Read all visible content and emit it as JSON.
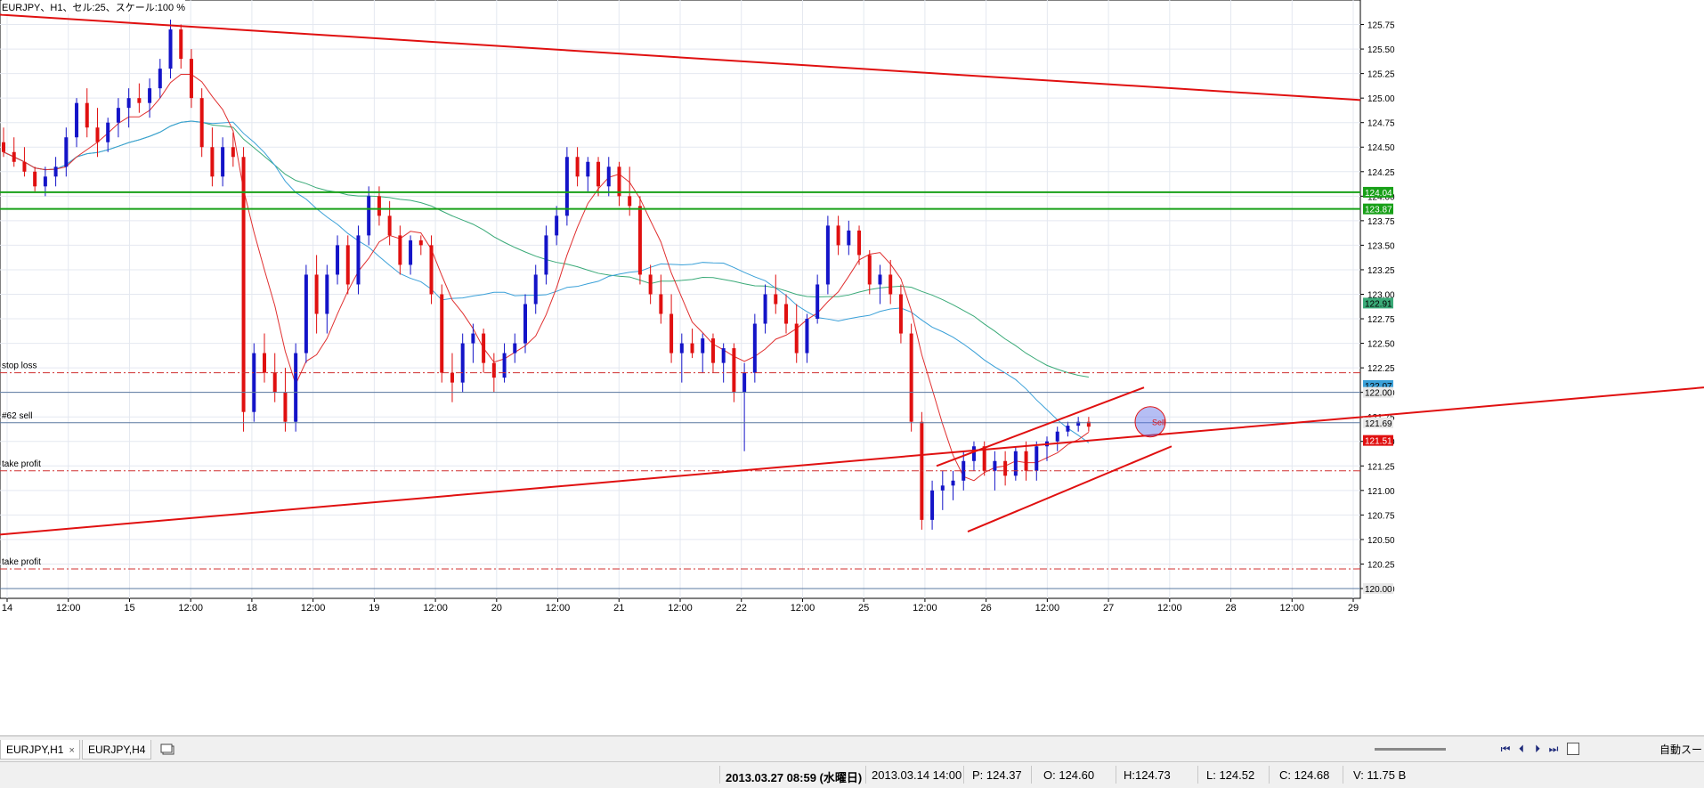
{
  "window": {
    "title": "EURJPY、H1、セル:25、スケール:100 %"
  },
  "colors": {
    "bull": "#1414c8",
    "bear": "#e01010",
    "trendline": "#e01010",
    "resistance": "#18a018",
    "ma_fast": "#e03030",
    "ma_mid": "#3aa0d8",
    "ma_slow": "#3aaa78",
    "grid": "#e4e8f0",
    "level_line": "#5a78a0",
    "stop_line": "#d03030",
    "axis_text": "#000000"
  },
  "chart_data": {
    "type": "candlestick",
    "symbol": "EURJPY",
    "timeframe": "H1",
    "ylim": [
      119.9,
      126.0
    ],
    "y_ticks": [
      "125.75",
      "125.50",
      "125.25",
      "125.00",
      "124.75",
      "124.50",
      "124.25",
      "124.00",
      "123.75",
      "123.50",
      "123.25",
      "123.00",
      "122.75",
      "122.50",
      "122.25",
      "122.00",
      "121.75",
      "121.50",
      "121.25",
      "121.00",
      "120.75",
      "120.50",
      "120.25",
      "120.00"
    ],
    "x_ticks": [
      "14",
      "12:00",
      "15",
      "12:00",
      "18",
      "12:00",
      "19",
      "12:00",
      "20",
      "12:00",
      "21",
      "12:00",
      "22",
      "12:00",
      "25",
      "12:00",
      "26",
      "12:00",
      "27",
      "12:00",
      "28",
      "12:00",
      "29"
    ],
    "candles": [
      [
        124.55,
        124.7,
        124.4,
        124.45
      ],
      [
        124.45,
        124.6,
        124.3,
        124.35
      ],
      [
        124.35,
        124.5,
        124.2,
        124.25
      ],
      [
        124.25,
        124.3,
        124.05,
        124.1
      ],
      [
        124.1,
        124.3,
        124.0,
        124.2
      ],
      [
        124.2,
        124.4,
        124.1,
        124.3
      ],
      [
        124.3,
        124.7,
        124.2,
        124.6
      ],
      [
        124.6,
        125.0,
        124.5,
        124.95
      ],
      [
        124.95,
        125.1,
        124.6,
        124.7
      ],
      [
        124.7,
        124.9,
        124.4,
        124.55
      ],
      [
        124.55,
        124.8,
        124.45,
        124.75
      ],
      [
        124.75,
        125.0,
        124.6,
        124.9
      ],
      [
        124.9,
        125.1,
        124.7,
        125.0
      ],
      [
        125.0,
        125.15,
        124.85,
        124.95
      ],
      [
        124.95,
        125.2,
        124.8,
        125.1
      ],
      [
        125.1,
        125.4,
        125.0,
        125.3
      ],
      [
        125.3,
        125.8,
        125.2,
        125.7
      ],
      [
        125.7,
        125.75,
        125.3,
        125.4
      ],
      [
        125.4,
        125.5,
        124.9,
        125.0
      ],
      [
        125.0,
        125.1,
        124.4,
        124.5
      ],
      [
        124.5,
        124.7,
        124.1,
        124.2
      ],
      [
        124.2,
        124.6,
        124.1,
        124.5
      ],
      [
        124.5,
        124.65,
        124.3,
        124.4
      ],
      [
        124.4,
        124.5,
        121.6,
        121.8
      ],
      [
        121.8,
        122.5,
        121.7,
        122.4
      ],
      [
        122.4,
        122.6,
        122.1,
        122.2
      ],
      [
        122.2,
        122.4,
        121.9,
        122.0
      ],
      [
        122.0,
        122.25,
        121.6,
        121.7
      ],
      [
        121.7,
        122.5,
        121.6,
        122.4
      ],
      [
        122.4,
        123.3,
        122.3,
        123.2
      ],
      [
        123.2,
        123.4,
        122.6,
        122.8
      ],
      [
        122.8,
        123.3,
        122.6,
        123.2
      ],
      [
        123.2,
        123.6,
        123.1,
        123.5
      ],
      [
        123.5,
        123.6,
        123.0,
        123.1
      ],
      [
        123.1,
        123.7,
        123.0,
        123.6
      ],
      [
        123.6,
        124.1,
        123.5,
        124.0
      ],
      [
        124.0,
        124.1,
        123.7,
        123.8
      ],
      [
        123.8,
        123.95,
        123.5,
        123.6
      ],
      [
        123.6,
        123.7,
        123.2,
        123.3
      ],
      [
        123.3,
        123.6,
        123.2,
        123.55
      ],
      [
        123.55,
        123.6,
        123.4,
        123.5
      ],
      [
        123.5,
        123.6,
        122.9,
        123.0
      ],
      [
        123.0,
        123.1,
        122.1,
        122.2
      ],
      [
        122.2,
        122.4,
        121.9,
        122.1
      ],
      [
        122.1,
        122.6,
        122.0,
        122.5
      ],
      [
        122.5,
        122.7,
        122.3,
        122.6
      ],
      [
        122.6,
        122.65,
        122.2,
        122.3
      ],
      [
        122.3,
        122.4,
        122.0,
        122.15
      ],
      [
        122.15,
        122.5,
        122.1,
        122.4
      ],
      [
        122.4,
        122.6,
        122.3,
        122.5
      ],
      [
        122.5,
        123.0,
        122.4,
        122.9
      ],
      [
        122.9,
        123.3,
        122.8,
        123.2
      ],
      [
        123.2,
        123.7,
        123.1,
        123.6
      ],
      [
        123.6,
        123.9,
        123.5,
        123.8
      ],
      [
        123.8,
        124.5,
        123.7,
        124.4
      ],
      [
        124.4,
        124.5,
        124.1,
        124.2
      ],
      [
        124.2,
        124.4,
        124.05,
        124.35
      ],
      [
        124.35,
        124.4,
        124.0,
        124.1
      ],
      [
        124.1,
        124.4,
        124.0,
        124.3
      ],
      [
        124.3,
        124.35,
        123.9,
        124.0
      ],
      [
        124.0,
        124.3,
        123.8,
        123.9
      ],
      [
        123.9,
        124.0,
        123.1,
        123.2
      ],
      [
        123.2,
        123.3,
        122.9,
        123.0
      ],
      [
        123.0,
        123.2,
        122.7,
        122.8
      ],
      [
        122.8,
        123.0,
        122.3,
        122.4
      ],
      [
        122.4,
        122.6,
        122.1,
        122.5
      ],
      [
        122.5,
        122.65,
        122.35,
        122.4
      ],
      [
        122.4,
        122.6,
        122.2,
        122.55
      ],
      [
        122.55,
        122.6,
        122.2,
        122.3
      ],
      [
        122.3,
        122.5,
        122.1,
        122.45
      ],
      [
        122.45,
        122.5,
        121.9,
        122.0
      ],
      [
        122.0,
        122.3,
        121.4,
        122.2
      ],
      [
        122.2,
        122.8,
        122.1,
        122.7
      ],
      [
        122.7,
        123.1,
        122.6,
        123.0
      ],
      [
        123.0,
        123.2,
        122.8,
        122.9
      ],
      [
        122.9,
        123.0,
        122.6,
        122.7
      ],
      [
        122.7,
        122.9,
        122.3,
        122.4
      ],
      [
        122.4,
        122.8,
        122.3,
        122.75
      ],
      [
        122.75,
        123.2,
        122.7,
        123.1
      ],
      [
        123.1,
        123.8,
        123.0,
        123.7
      ],
      [
        123.7,
        123.8,
        123.4,
        123.5
      ],
      [
        123.5,
        123.75,
        123.4,
        123.65
      ],
      [
        123.65,
        123.7,
        123.3,
        123.4
      ],
      [
        123.4,
        123.45,
        123.0,
        123.1
      ],
      [
        123.1,
        123.3,
        122.9,
        123.2
      ],
      [
        123.2,
        123.35,
        122.9,
        123.0
      ],
      [
        123.0,
        123.1,
        122.5,
        122.6
      ],
      [
        122.6,
        122.7,
        121.6,
        121.7
      ],
      [
        121.7,
        121.8,
        120.6,
        120.7
      ],
      [
        120.7,
        121.1,
        120.6,
        121.0
      ],
      [
        121.0,
        121.2,
        120.8,
        121.05
      ],
      [
        121.05,
        121.2,
        120.9,
        121.1
      ],
      [
        121.1,
        121.4,
        121.0,
        121.3
      ],
      [
        121.3,
        121.5,
        121.2,
        121.45
      ],
      [
        121.45,
        121.5,
        121.15,
        121.2
      ],
      [
        121.2,
        121.4,
        121.0,
        121.3
      ],
      [
        121.3,
        121.4,
        121.05,
        121.15
      ],
      [
        121.15,
        121.45,
        121.1,
        121.4
      ],
      [
        121.4,
        121.5,
        121.1,
        121.2
      ],
      [
        121.2,
        121.5,
        121.1,
        121.45
      ],
      [
        121.45,
        121.55,
        121.3,
        121.5
      ],
      [
        121.5,
        121.65,
        121.4,
        121.6
      ],
      [
        121.6,
        121.7,
        121.55,
        121.66
      ],
      [
        121.66,
        121.75,
        121.6,
        121.7
      ],
      [
        121.7,
        121.75,
        121.6,
        121.65
      ]
    ],
    "horizontal_lines": [
      {
        "price": 124.04,
        "kind": "resistance"
      },
      {
        "price": 123.87,
        "kind": "resistance"
      },
      {
        "price": 122.0,
        "kind": "level"
      },
      {
        "price": 121.69,
        "kind": "level"
      },
      {
        "price": 120.0,
        "kind": "level"
      }
    ],
    "order_lines": [
      {
        "label": "stop loss",
        "price": 122.2
      },
      {
        "label": "#62 sell",
        "price": 121.69
      },
      {
        "label": "take profit",
        "price": 121.2
      },
      {
        "label": "take profit",
        "price": 120.2
      }
    ],
    "price_labels": [
      {
        "text": "124.04",
        "price": 124.04,
        "color": "#18a018",
        "fg": "#ffffff"
      },
      {
        "text": "123.87",
        "price": 123.87,
        "color": "#18a018",
        "fg": "#ffffff"
      },
      {
        "text": "122.91",
        "price": 122.91,
        "color": "#3aaa78",
        "fg": "#000000"
      },
      {
        "text": "122.07",
        "price": 122.07,
        "color": "#3aa0d8",
        "fg": "#000000"
      },
      {
        "text": "122.00",
        "price": 122.0,
        "color": "#e8e8e8",
        "fg": "#000000"
      },
      {
        "text": "121.69",
        "price": 121.69,
        "color": "#e8e8e8",
        "fg": "#000000"
      },
      {
        "text": "121.51",
        "price": 121.51,
        "color": "#e01010",
        "fg": "#ffffff"
      },
      {
        "text": "120.00",
        "price": 120.0,
        "color": "#e8e8e8",
        "fg": "#000000"
      }
    ],
    "trade_marker": {
      "label": "Sell",
      "price": 121.7
    }
  },
  "tabs": [
    {
      "label": "EURJPY,H1",
      "close": "×"
    },
    {
      "label": "EURJPY,H4"
    }
  ],
  "scroll": {
    "first": "⏮",
    "prev": "⏴",
    "next": "⏵",
    "last": "⏭",
    "label": "自動スー"
  },
  "status": {
    "datetime": "2013.03.27 08:59 (水曜日)",
    "cursor_time": "2013.03.14 14:00",
    "price": "P: 124.37",
    "open": "O: 124.60",
    "high": "H:124.73",
    "low": "L: 124.52",
    "close": "C: 124.68",
    "volume": "V: 11.75 B"
  }
}
